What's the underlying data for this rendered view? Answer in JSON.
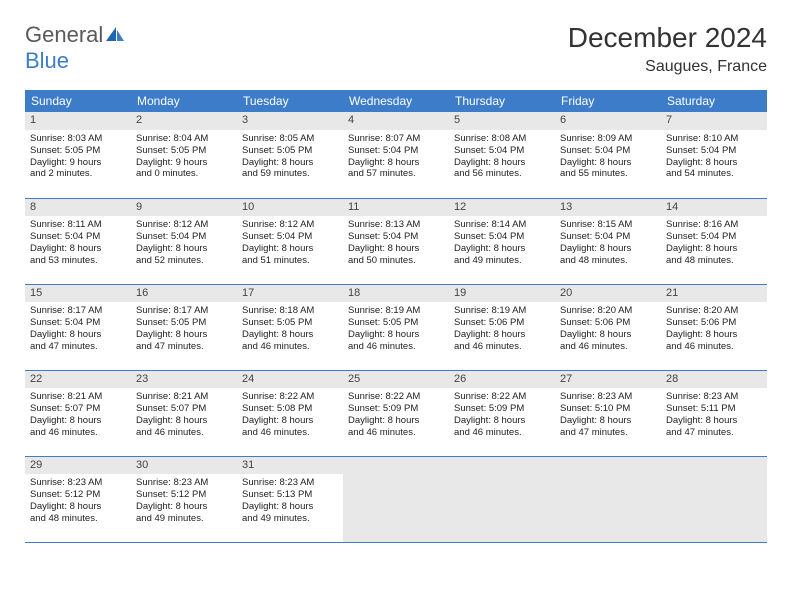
{
  "logo": {
    "general": "General",
    "blue": "Blue"
  },
  "title": "December 2024",
  "location": "Saugues, France",
  "colors": {
    "header_bg": "#3d7cc9",
    "header_fg": "#ffffff",
    "daynum_bg": "#e8e8e8",
    "border": "#3d7cc9",
    "text": "#222222",
    "logo_gray": "#5a5a5a",
    "logo_blue": "#3d7cc9"
  },
  "weekdays": [
    "Sunday",
    "Monday",
    "Tuesday",
    "Wednesday",
    "Thursday",
    "Friday",
    "Saturday"
  ],
  "weeks": [
    [
      {
        "n": "1",
        "sr": "Sunrise: 8:03 AM",
        "ss": "Sunset: 5:05 PM",
        "d1": "Daylight: 9 hours",
        "d2": "and 2 minutes."
      },
      {
        "n": "2",
        "sr": "Sunrise: 8:04 AM",
        "ss": "Sunset: 5:05 PM",
        "d1": "Daylight: 9 hours",
        "d2": "and 0 minutes."
      },
      {
        "n": "3",
        "sr": "Sunrise: 8:05 AM",
        "ss": "Sunset: 5:05 PM",
        "d1": "Daylight: 8 hours",
        "d2": "and 59 minutes."
      },
      {
        "n": "4",
        "sr": "Sunrise: 8:07 AM",
        "ss": "Sunset: 5:04 PM",
        "d1": "Daylight: 8 hours",
        "d2": "and 57 minutes."
      },
      {
        "n": "5",
        "sr": "Sunrise: 8:08 AM",
        "ss": "Sunset: 5:04 PM",
        "d1": "Daylight: 8 hours",
        "d2": "and 56 minutes."
      },
      {
        "n": "6",
        "sr": "Sunrise: 8:09 AM",
        "ss": "Sunset: 5:04 PM",
        "d1": "Daylight: 8 hours",
        "d2": "and 55 minutes."
      },
      {
        "n": "7",
        "sr": "Sunrise: 8:10 AM",
        "ss": "Sunset: 5:04 PM",
        "d1": "Daylight: 8 hours",
        "d2": "and 54 minutes."
      }
    ],
    [
      {
        "n": "8",
        "sr": "Sunrise: 8:11 AM",
        "ss": "Sunset: 5:04 PM",
        "d1": "Daylight: 8 hours",
        "d2": "and 53 minutes."
      },
      {
        "n": "9",
        "sr": "Sunrise: 8:12 AM",
        "ss": "Sunset: 5:04 PM",
        "d1": "Daylight: 8 hours",
        "d2": "and 52 minutes."
      },
      {
        "n": "10",
        "sr": "Sunrise: 8:12 AM",
        "ss": "Sunset: 5:04 PM",
        "d1": "Daylight: 8 hours",
        "d2": "and 51 minutes."
      },
      {
        "n": "11",
        "sr": "Sunrise: 8:13 AM",
        "ss": "Sunset: 5:04 PM",
        "d1": "Daylight: 8 hours",
        "d2": "and 50 minutes."
      },
      {
        "n": "12",
        "sr": "Sunrise: 8:14 AM",
        "ss": "Sunset: 5:04 PM",
        "d1": "Daylight: 8 hours",
        "d2": "and 49 minutes."
      },
      {
        "n": "13",
        "sr": "Sunrise: 8:15 AM",
        "ss": "Sunset: 5:04 PM",
        "d1": "Daylight: 8 hours",
        "d2": "and 48 minutes."
      },
      {
        "n": "14",
        "sr": "Sunrise: 8:16 AM",
        "ss": "Sunset: 5:04 PM",
        "d1": "Daylight: 8 hours",
        "d2": "and 48 minutes."
      }
    ],
    [
      {
        "n": "15",
        "sr": "Sunrise: 8:17 AM",
        "ss": "Sunset: 5:04 PM",
        "d1": "Daylight: 8 hours",
        "d2": "and 47 minutes."
      },
      {
        "n": "16",
        "sr": "Sunrise: 8:17 AM",
        "ss": "Sunset: 5:05 PM",
        "d1": "Daylight: 8 hours",
        "d2": "and 47 minutes."
      },
      {
        "n": "17",
        "sr": "Sunrise: 8:18 AM",
        "ss": "Sunset: 5:05 PM",
        "d1": "Daylight: 8 hours",
        "d2": "and 46 minutes."
      },
      {
        "n": "18",
        "sr": "Sunrise: 8:19 AM",
        "ss": "Sunset: 5:05 PM",
        "d1": "Daylight: 8 hours",
        "d2": "and 46 minutes."
      },
      {
        "n": "19",
        "sr": "Sunrise: 8:19 AM",
        "ss": "Sunset: 5:06 PM",
        "d1": "Daylight: 8 hours",
        "d2": "and 46 minutes."
      },
      {
        "n": "20",
        "sr": "Sunrise: 8:20 AM",
        "ss": "Sunset: 5:06 PM",
        "d1": "Daylight: 8 hours",
        "d2": "and 46 minutes."
      },
      {
        "n": "21",
        "sr": "Sunrise: 8:20 AM",
        "ss": "Sunset: 5:06 PM",
        "d1": "Daylight: 8 hours",
        "d2": "and 46 minutes."
      }
    ],
    [
      {
        "n": "22",
        "sr": "Sunrise: 8:21 AM",
        "ss": "Sunset: 5:07 PM",
        "d1": "Daylight: 8 hours",
        "d2": "and 46 minutes."
      },
      {
        "n": "23",
        "sr": "Sunrise: 8:21 AM",
        "ss": "Sunset: 5:07 PM",
        "d1": "Daylight: 8 hours",
        "d2": "and 46 minutes."
      },
      {
        "n": "24",
        "sr": "Sunrise: 8:22 AM",
        "ss": "Sunset: 5:08 PM",
        "d1": "Daylight: 8 hours",
        "d2": "and 46 minutes."
      },
      {
        "n": "25",
        "sr": "Sunrise: 8:22 AM",
        "ss": "Sunset: 5:09 PM",
        "d1": "Daylight: 8 hours",
        "d2": "and 46 minutes."
      },
      {
        "n": "26",
        "sr": "Sunrise: 8:22 AM",
        "ss": "Sunset: 5:09 PM",
        "d1": "Daylight: 8 hours",
        "d2": "and 46 minutes."
      },
      {
        "n": "27",
        "sr": "Sunrise: 8:23 AM",
        "ss": "Sunset: 5:10 PM",
        "d1": "Daylight: 8 hours",
        "d2": "and 47 minutes."
      },
      {
        "n": "28",
        "sr": "Sunrise: 8:23 AM",
        "ss": "Sunset: 5:11 PM",
        "d1": "Daylight: 8 hours",
        "d2": "and 47 minutes."
      }
    ],
    [
      {
        "n": "29",
        "sr": "Sunrise: 8:23 AM",
        "ss": "Sunset: 5:12 PM",
        "d1": "Daylight: 8 hours",
        "d2": "and 48 minutes."
      },
      {
        "n": "30",
        "sr": "Sunrise: 8:23 AM",
        "ss": "Sunset: 5:12 PM",
        "d1": "Daylight: 8 hours",
        "d2": "and 49 minutes."
      },
      {
        "n": "31",
        "sr": "Sunrise: 8:23 AM",
        "ss": "Sunset: 5:13 PM",
        "d1": "Daylight: 8 hours",
        "d2": "and 49 minutes."
      },
      null,
      null,
      null,
      null
    ]
  ]
}
